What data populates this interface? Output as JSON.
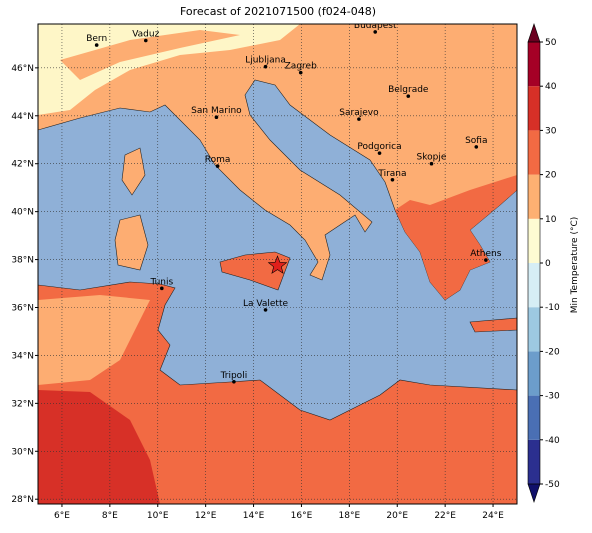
{
  "title": "Forecast of 2021071500 (f024-048)",
  "map": {
    "lonlim": [
      5,
      25
    ],
    "latlim": [
      27.8,
      47.83
    ],
    "lon_ticks": [
      {
        "value": 6,
        "label": "6°E"
      },
      {
        "value": 8,
        "label": "8°E"
      },
      {
        "value": 10,
        "label": "10°E"
      },
      {
        "value": 12,
        "label": "12°E"
      },
      {
        "value": 14,
        "label": "14°E"
      },
      {
        "value": 16,
        "label": "16°E"
      },
      {
        "value": 18,
        "label": "18°E"
      },
      {
        "value": 20,
        "label": "20°E"
      },
      {
        "value": 22,
        "label": "22°E"
      },
      {
        "value": 24,
        "label": "24°E"
      }
    ],
    "lat_ticks": [
      {
        "value": 28,
        "label": "28°N"
      },
      {
        "value": 30,
        "label": "30°N"
      },
      {
        "value": 32,
        "label": "32°N"
      },
      {
        "value": 34,
        "label": "34°N"
      },
      {
        "value": 36,
        "label": "36°N"
      },
      {
        "value": 38,
        "label": "38°N"
      },
      {
        "value": 40,
        "label": "40°N"
      },
      {
        "value": 42,
        "label": "42°N"
      },
      {
        "value": 44,
        "label": "44°N"
      },
      {
        "value": 46,
        "label": "46°N"
      }
    ],
    "cities": [
      {
        "name": "Bern",
        "lon": 7.45,
        "lat": 46.95
      },
      {
        "name": "Vaduz",
        "lon": 9.5,
        "lat": 47.14
      },
      {
        "name": "Budapest",
        "lon": 19.08,
        "lat": 47.5
      },
      {
        "name": "Ljubljana",
        "lon": 14.5,
        "lat": 46.05
      },
      {
        "name": "Zagreb",
        "lon": 15.97,
        "lat": 45.8
      },
      {
        "name": "Belgrade",
        "lon": 20.46,
        "lat": 44.82
      },
      {
        "name": "San Marino",
        "lon": 12.45,
        "lat": 43.94
      },
      {
        "name": "Sarajevo",
        "lon": 18.4,
        "lat": 43.86
      },
      {
        "name": "Sofia",
        "lon": 23.3,
        "lat": 42.7
      },
      {
        "name": "Roma",
        "lon": 12.5,
        "lat": 41.9
      },
      {
        "name": "Podgorica",
        "lon": 19.26,
        "lat": 42.44
      },
      {
        "name": "Skopje",
        "lon": 21.43,
        "lat": 42.0
      },
      {
        "name": "Tirana",
        "lon": 19.8,
        "lat": 41.33
      },
      {
        "name": "Athens",
        "lon": 23.7,
        "lat": 37.98
      },
      {
        "name": "Tunis",
        "lon": 10.17,
        "lat": 36.8
      },
      {
        "name": "La Valette",
        "lon": 14.5,
        "lat": 35.9
      },
      {
        "name": "Tripoli",
        "lon": 13.18,
        "lat": 32.9
      }
    ],
    "marker": {
      "lon": 15.0,
      "lat": 37.75,
      "color": "#e0201b"
    }
  },
  "colorbar": {
    "label": "Min Temperature (°C)",
    "clim": [
      -50,
      50
    ],
    "ticks": [
      -50,
      -40,
      -30,
      -20,
      -10,
      0,
      10,
      20,
      30,
      40,
      50
    ],
    "colors": [
      "#10106a",
      "#2b2f8f",
      "#4a6fb4",
      "#6c9dcb",
      "#9dc9e1",
      "#d6eef5",
      "#fdfbd2",
      "#fdb072",
      "#f26a43",
      "#d73027",
      "#a50026",
      "#6b0020"
    ]
  }
}
